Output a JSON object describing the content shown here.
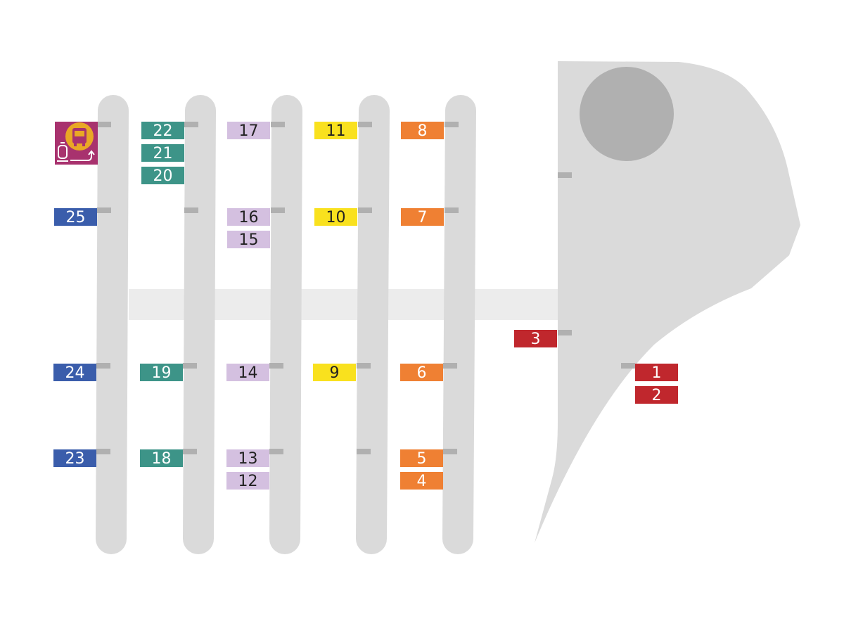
{
  "colors": {
    "blue": "#3a5dab",
    "teal": "#3d9488",
    "lavender": "#d4c0e0",
    "yellow": "#f9e11e",
    "orange": "#ef8033",
    "red": "#c0272d",
    "platform": "#dadada",
    "walkway": "#ececec",
    "marker": "#b0b0b0",
    "icon_background": "#a8326e",
    "icon_circle": "#e9a825"
  },
  "icons": [
    "bus-icon",
    "tram-icon",
    "transfer-arrow-icon"
  ],
  "stops": [
    {
      "label": "1",
      "color": "red"
    },
    {
      "label": "2",
      "color": "red"
    },
    {
      "label": "3",
      "color": "red"
    },
    {
      "label": "4",
      "color": "orange"
    },
    {
      "label": "5",
      "color": "orange"
    },
    {
      "label": "6",
      "color": "orange"
    },
    {
      "label": "7",
      "color": "orange"
    },
    {
      "label": "8",
      "color": "orange"
    },
    {
      "label": "9",
      "color": "yellow"
    },
    {
      "label": "10",
      "color": "yellow"
    },
    {
      "label": "11",
      "color": "yellow"
    },
    {
      "label": "12",
      "color": "lavender"
    },
    {
      "label": "13",
      "color": "lavender"
    },
    {
      "label": "14",
      "color": "lavender"
    },
    {
      "label": "15",
      "color": "lavender"
    },
    {
      "label": "16",
      "color": "lavender"
    },
    {
      "label": "17",
      "color": "lavender"
    },
    {
      "label": "18",
      "color": "teal"
    },
    {
      "label": "19",
      "color": "teal"
    },
    {
      "label": "20",
      "color": "teal"
    },
    {
      "label": "21",
      "color": "teal"
    },
    {
      "label": "22",
      "color": "teal"
    },
    {
      "label": "23",
      "color": "blue"
    },
    {
      "label": "24",
      "color": "blue"
    },
    {
      "label": "25",
      "color": "blue"
    }
  ]
}
